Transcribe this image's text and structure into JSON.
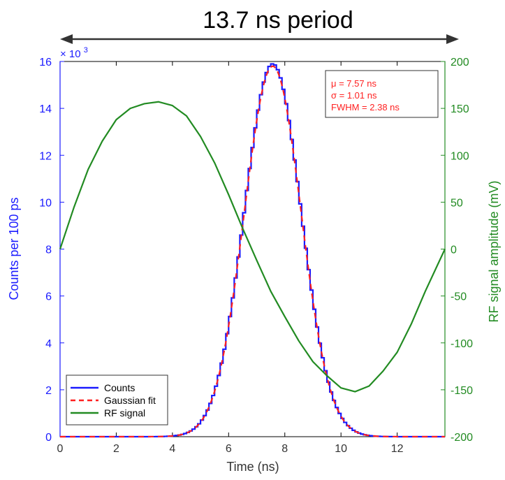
{
  "chart_data": {
    "type": "line",
    "title": "",
    "annotation_top": "13.7 ns period",
    "xlabel": "Time (ns)",
    "ylabel_left": "Counts per 100 ps",
    "ylabel_right": "RF signal amplitude (mV)",
    "exponent_label": "× 10",
    "exponent_power": "3",
    "xlim": [
      0,
      13.7
    ],
    "ylim_left": [
      0,
      16
    ],
    "ylim_right": [
      -200,
      200
    ],
    "x_ticks": [
      0,
      2,
      4,
      6,
      8,
      10,
      12
    ],
    "x_tick_labels": [
      "0",
      "2",
      "4",
      "6",
      "8",
      "10",
      "12"
    ],
    "y_left_ticks": [
      0,
      2,
      4,
      6,
      8,
      10,
      12,
      14,
      16
    ],
    "y_left_tick_labels": [
      "0",
      "2",
      "4",
      "6",
      "8",
      "10",
      "12",
      "14",
      "16"
    ],
    "y_right_ticks": [
      -200,
      -150,
      -100,
      -50,
      0,
      50,
      100,
      150,
      200
    ],
    "y_right_tick_labels": [
      "-200",
      "-150",
      "-100",
      "-50",
      "0",
      "50",
      "100",
      "150",
      "200"
    ],
    "grid": false,
    "legend_position": "bottom-left",
    "stats_box": {
      "position": "top-right",
      "lines": [
        "μ = 7.57 ns",
        "σ = 1.01 ns",
        "FWHM = 2.38 ns"
      ]
    },
    "series": [
      {
        "name": "Counts",
        "type": "step",
        "axis": "left",
        "color": "#1a1aff",
        "style": "solid",
        "fit_mu": 7.57,
        "fit_sigma": 1.01,
        "peak": 15.9,
        "bin_width": 0.1
      },
      {
        "name": "Gaussian fit",
        "type": "line",
        "axis": "left",
        "color": "#ff2020",
        "style": "dashed",
        "mu": 7.57,
        "sigma": 1.01,
        "amplitude": 15.8
      },
      {
        "name": "RF signal",
        "type": "line",
        "axis": "right",
        "color": "#228b22",
        "style": "solid",
        "x": [
          0,
          0.5,
          1,
          1.5,
          2,
          2.5,
          3,
          3.5,
          4,
          4.5,
          5,
          5.5,
          6,
          6.5,
          7,
          7.5,
          8,
          8.5,
          9,
          9.5,
          10,
          10.5,
          11,
          11.5,
          12,
          12.5,
          13,
          13.7
        ],
        "y": [
          0,
          45,
          85,
          115,
          138,
          150,
          155,
          157,
          153,
          142,
          120,
          92,
          58,
          22,
          -12,
          -45,
          -72,
          -98,
          -120,
          -135,
          -148,
          -152,
          -146,
          -130,
          -110,
          -80,
          -45,
          0
        ]
      }
    ]
  }
}
